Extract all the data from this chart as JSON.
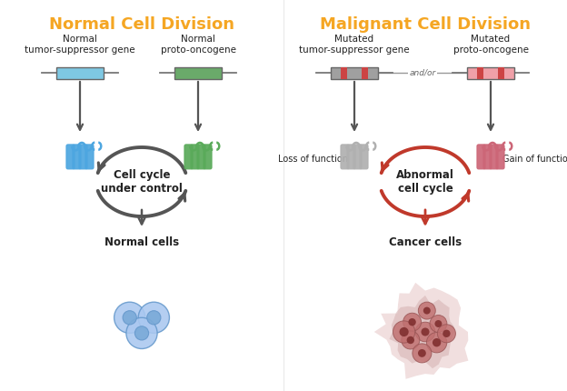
{
  "title_normal": "Normal Cell Division",
  "title_malignant": "Malignant Cell Division",
  "title_color": "#F5A623",
  "title_fontsize": 13,
  "bg_color": "#ffffff",
  "label_normal_tsg": "Normal\ntumor-suppressor gene",
  "label_normal_proto": "Normal\nproto-oncogene",
  "label_mutated_tsg": "Mutated\ntumor-suppressor gene",
  "label_mutated_proto": "Mutated\nproto-oncogene",
  "label_cell_cycle_normal": "Cell cycle\nunder control",
  "label_cell_cycle_abnormal": "Abnormal\ncell cycle",
  "label_normal_cells": "Normal cells",
  "label_cancer_cells": "Cancer cells",
  "label_loss": "Loss of function",
  "label_gain": "Gain of function",
  "label_andor": "and/or",
  "gene_normal_tsg_color": "#7EC8E3",
  "gene_normal_proto_color": "#6aaa6a",
  "gene_mutated_tsg_color": "#a0a0a0",
  "gene_mutated_proto_color": "#f0a0a8",
  "gene_stripe_color": "#cc4444",
  "arrow_normal_color": "#555555",
  "arrow_malignant_color": "#c0392b",
  "protein_normal_tsg_color": "#4da6e0",
  "protein_normal_proto_color": "#5aaa5a",
  "protein_mutated_tsg_color": "#b0b0b0",
  "protein_mutated_proto_color": "#cc6677",
  "normal_cell_color": "#aac8f0",
  "normal_cell_inner": "#7aaad8",
  "cancer_cell_color": "#c07070",
  "cancer_blob_color": "#e0b8b8",
  "text_color": "#222222",
  "fontsize_label": 7.5,
  "fontsize_small": 7,
  "fontsize_annot": 8.5
}
